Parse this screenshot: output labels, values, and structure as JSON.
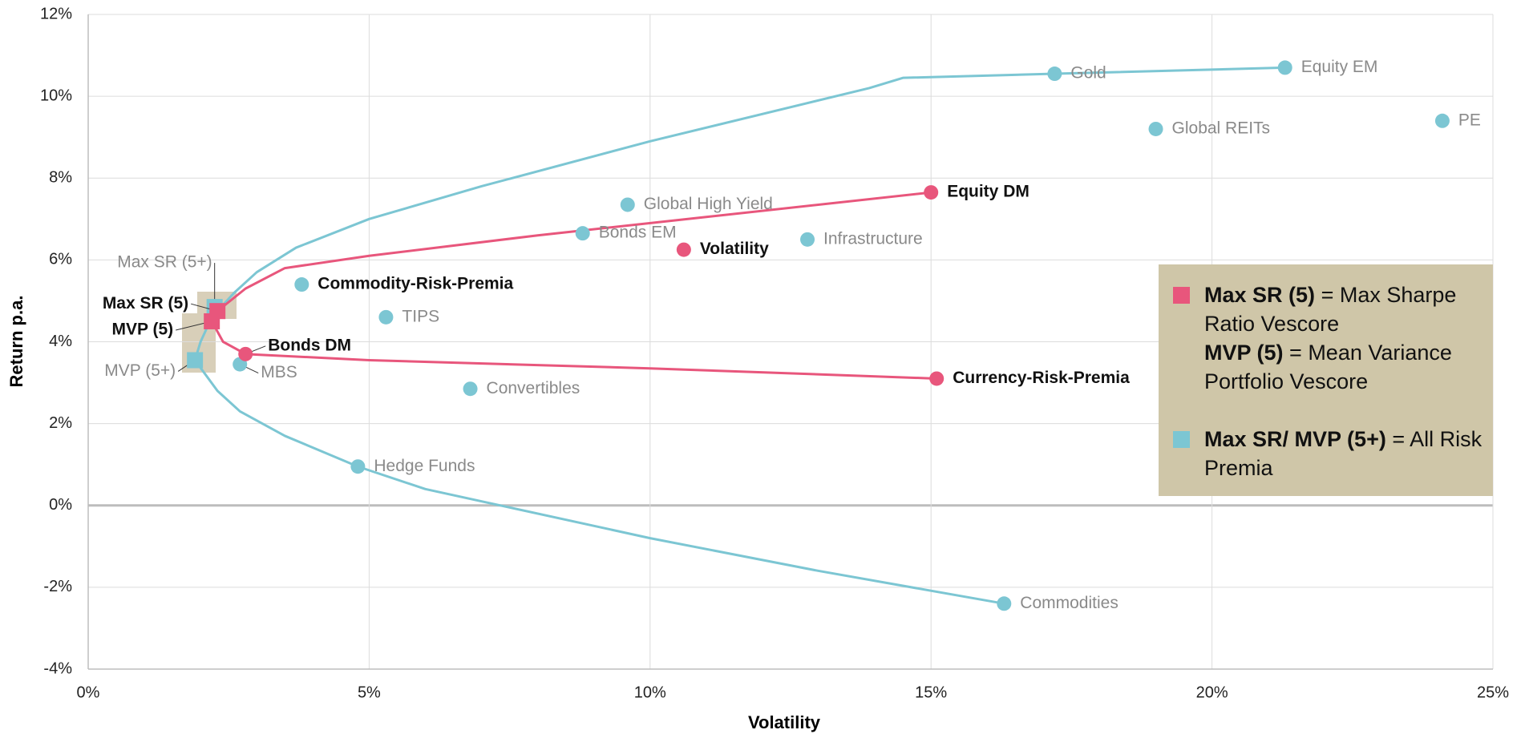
{
  "chart_data": {
    "type": "scatter",
    "xlabel": "Volatility",
    "ylabel": "Return p.a.",
    "xlim": [
      0,
      25
    ],
    "ylim": [
      -4,
      12
    ],
    "xticks": [
      {
        "value": 0,
        "label": "0%"
      },
      {
        "value": 5,
        "label": "5%"
      },
      {
        "value": 10,
        "label": "10%"
      },
      {
        "value": 15,
        "label": "15%"
      },
      {
        "value": 20,
        "label": "20%"
      },
      {
        "value": 25,
        "label": "25%"
      }
    ],
    "yticks": [
      {
        "value": -4,
        "label": "-4%"
      },
      {
        "value": -2,
        "label": "-2%"
      },
      {
        "value": 0,
        "label": "0%"
      },
      {
        "value": 2,
        "label": "2%"
      },
      {
        "value": 4,
        "label": "4%"
      },
      {
        "value": 6,
        "label": "6%"
      },
      {
        "value": 8,
        "label": "8%"
      },
      {
        "value": 10,
        "label": "10%"
      },
      {
        "value": 12,
        "label": "12%"
      }
    ],
    "grid": true,
    "series": [
      {
        "kind": "line",
        "color": "#7cc6d3",
        "x": [
          16.3,
          13,
          10,
          7.5,
          6,
          4.8,
          3.5,
          2.7,
          2.3,
          1.9,
          2.0,
          2.2,
          2.6,
          3.0,
          3.7,
          5,
          7,
          10,
          13.9,
          14.5,
          17.2,
          21.3
        ],
        "values": [
          -2.4,
          -1.6,
          -0.8,
          -0.05,
          0.4,
          0.95,
          1.7,
          2.3,
          2.8,
          3.55,
          4.0,
          4.6,
          5.2,
          5.7,
          6.3,
          7.0,
          7.8,
          8.9,
          10.2,
          10.45,
          10.55,
          10.7
        ]
      },
      {
        "kind": "line",
        "color": "#e8567c",
        "x": [
          15.1,
          10,
          5,
          2.8,
          2.4,
          2.2,
          2.3,
          2.8,
          3.5,
          5,
          8,
          11,
          15
        ],
        "values": [
          3.1,
          3.35,
          3.55,
          3.7,
          4.0,
          4.5,
          4.75,
          5.3,
          5.8,
          6.1,
          6.6,
          7.05,
          7.65
        ]
      },
      {
        "kind": "points",
        "marker": "circle",
        "color": "#7cc6d3",
        "label_color": "#8a8a8a",
        "label_weight": "normal",
        "labels": [
          "Gold",
          "Equity EM",
          "Global REITs",
          "PE",
          "Global High Yield",
          "Bonds EM",
          "Infrastructure",
          "TIPS",
          "MBS",
          "Convertibles",
          "Hedge Funds",
          "Commodities"
        ],
        "x": [
          17.2,
          21.3,
          19.0,
          24.1,
          9.6,
          8.8,
          12.8,
          5.3,
          2.7,
          6.8,
          4.8,
          16.3
        ],
        "values": [
          10.55,
          10.7,
          9.2,
          9.4,
          7.35,
          6.65,
          6.5,
          4.6,
          3.45,
          2.85,
          0.95,
          -2.4
        ]
      },
      {
        "kind": "points",
        "marker": "circle",
        "color": "#7cc6d3",
        "label_color": "#111111",
        "label_weight": "bold",
        "labels": [
          "Commodity-Risk-Premia"
        ],
        "x": [
          3.8
        ],
        "values": [
          5.4
        ]
      },
      {
        "kind": "points",
        "marker": "circle",
        "color": "#e8567c",
        "label_color": "#111111",
        "label_weight": "bold",
        "labels": [
          "Equity DM",
          "Volatility",
          "Bonds DM",
          "Currency-Risk-Premia"
        ],
        "x": [
          15.0,
          10.6,
          2.8,
          15.1
        ],
        "values": [
          7.65,
          6.25,
          3.7,
          3.1
        ]
      },
      {
        "kind": "points",
        "marker": "square",
        "color": "#7cc6d3",
        "label_color": "#8a8a8a",
        "label_weight": "normal",
        "labels": [
          "Max SR (5+)",
          "MVP (5+)"
        ],
        "x": [
          2.25,
          1.9
        ],
        "values": [
          4.85,
          3.55
        ]
      },
      {
        "kind": "points",
        "marker": "square",
        "color": "#e8567c",
        "label_color": "#111111",
        "label_weight": "bold",
        "labels": [
          "Max SR (5)",
          "MVP (5)"
        ],
        "x": [
          2.3,
          2.2
        ],
        "values": [
          4.75,
          4.5
        ]
      }
    ],
    "legend": {
      "items": [
        {
          "color": "#e8567c",
          "key": "Max SR (5)",
          "text": "= Max Sharpe Ratio Vescore"
        },
        {
          "key": "MVP (5)",
          "text": "= Mean Variance Portfolio Vescore"
        },
        {
          "color": "#7cc6d3",
          "key": "Max SR/ MVP (5+)",
          "text": "= All Risk Premia"
        }
      ]
    }
  }
}
